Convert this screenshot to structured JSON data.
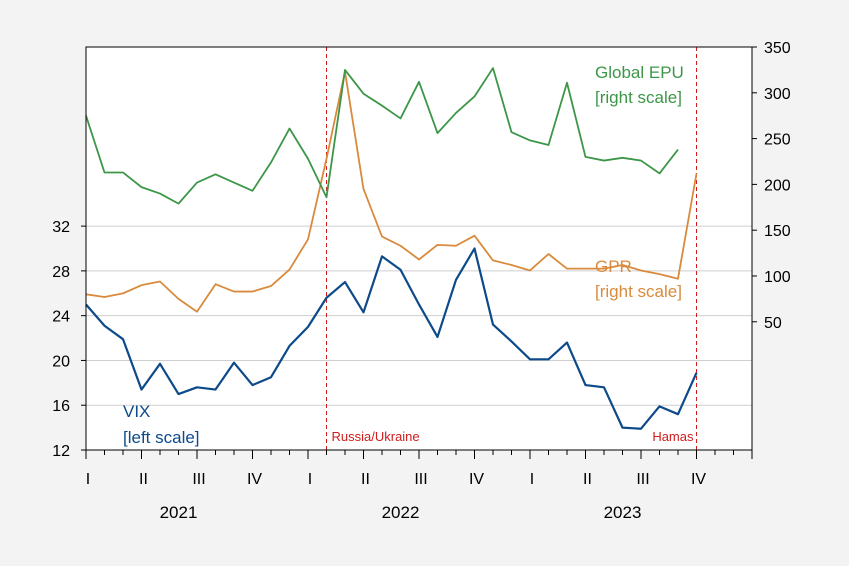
{
  "chart_data": {
    "type": "line",
    "title": "",
    "colors": {
      "vix": "#0d4a8a",
      "gpr": "#d98a3c",
      "epu": "#3d9648",
      "event": "#d01c1c",
      "grid": "#cfcfcf",
      "background": "#f3f3f3",
      "plot_background": "#ffffff"
    },
    "x_axis": {
      "quarter_labels": [
        "I",
        "II",
        "III",
        "IV",
        "I",
        "II",
        "III",
        "IV",
        "I",
        "II",
        "III",
        "IV"
      ],
      "year_labels": [
        "2021",
        "2022",
        "2023"
      ],
      "range": [
        "2021-01",
        "2023-12"
      ]
    },
    "left_axis": {
      "ylim": [
        12,
        48
      ],
      "ticks": [
        "12",
        "16",
        "20",
        "24",
        "28",
        "32"
      ]
    },
    "right_axis": {
      "ylim": [
        -90,
        350
      ],
      "ticks": [
        "50",
        "100",
        "150",
        "200",
        "250",
        "300",
        "350"
      ]
    },
    "months": [
      "2021-01",
      "2021-02",
      "2021-03",
      "2021-04",
      "2021-05",
      "2021-06",
      "2021-07",
      "2021-08",
      "2021-09",
      "2021-10",
      "2021-11",
      "2021-12",
      "2022-01",
      "2022-02",
      "2022-03",
      "2022-04",
      "2022-05",
      "2022-06",
      "2022-07",
      "2022-08",
      "2022-09",
      "2022-10",
      "2022-11",
      "2022-12",
      "2023-01",
      "2023-02",
      "2023-03",
      "2023-04",
      "2023-05",
      "2023-06",
      "2023-07",
      "2023-08",
      "2023-09",
      "2023-10"
    ],
    "series": [
      {
        "key": "vix",
        "name": "VIX",
        "scale_label": "[left scale]",
        "axis": "left",
        "values": [
          25.0,
          23.1,
          21.9,
          17.4,
          19.7,
          17.0,
          17.6,
          17.4,
          19.8,
          17.8,
          18.5,
          21.3,
          23.0,
          25.6,
          27.0,
          24.3,
          29.3,
          28.1,
          25.0,
          22.1,
          27.2,
          30.0,
          23.2,
          21.7,
          20.1,
          20.1,
          21.6,
          17.8,
          17.6,
          14.0,
          13.9,
          15.9,
          15.2,
          18.9
        ]
      },
      {
        "key": "gpr",
        "name": "GPR",
        "scale_label": "[right scale]",
        "axis": "right",
        "values": [
          80,
          77,
          81,
          90,
          94,
          75,
          61,
          91,
          83,
          83,
          89,
          107,
          140,
          228,
          323,
          195,
          143,
          133,
          118,
          134,
          133,
          144,
          117,
          112,
          106,
          124,
          108,
          108,
          108,
          112,
          106,
          102,
          97,
          212
        ]
      },
      {
        "key": "epu",
        "name": "Global EPU",
        "scale_label": "[right scale]",
        "axis": "right",
        "values": [
          275,
          213,
          213,
          197,
          190,
          179,
          202,
          211,
          202,
          193,
          224,
          261,
          228,
          186,
          325,
          299,
          286,
          272,
          312,
          256,
          278,
          296,
          327,
          257,
          248,
          243,
          311,
          230,
          226,
          229,
          226,
          212,
          238
        ]
      }
    ],
    "annotations": [
      {
        "key": "russia",
        "label": "Russia/Ukraine",
        "x": "2022-02"
      },
      {
        "key": "hamas",
        "label": "Hamas",
        "x": "2023-10"
      }
    ],
    "legend": {
      "placement": "in-plot labels"
    }
  }
}
